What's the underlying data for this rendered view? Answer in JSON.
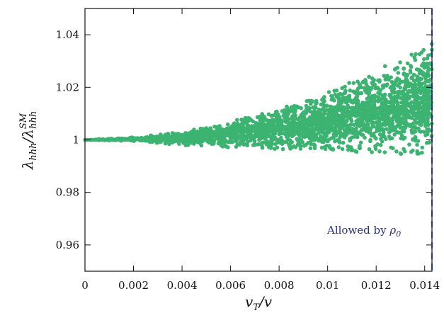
{
  "chart_data": {
    "type": "scatter",
    "xlabel": {
      "main": "v",
      "sub": "T",
      "tail": "/v"
    },
    "ylabel": {
      "main": "λ",
      "sub": "hhh",
      "mid": "/λ",
      "sub2": "hhh",
      "sup2": "SM"
    },
    "xlim": [
      0,
      0.0143
    ],
    "ylim": [
      0.95,
      1.05
    ],
    "xticks": [
      0,
      0.002,
      0.004,
      0.006,
      0.008,
      0.01,
      0.012,
      0.014
    ],
    "xtick_labels": [
      "0",
      "0.002",
      "0.004",
      "0.006",
      "0.008",
      "0.01",
      "0.012",
      "0.014"
    ],
    "yticks": [
      0.96,
      0.98,
      1.0,
      1.02,
      1.04
    ],
    "ytick_labels": [
      "0.96",
      "0.98",
      "1",
      "1.02",
      "1.04"
    ],
    "grid": false,
    "point_color": "#3cb371",
    "envelope": [
      {
        "x": 0.0,
        "ymin": 1.0,
        "ymax": 1.0
      },
      {
        "x": 0.002,
        "ymin": 0.9995,
        "ymax": 1.001
      },
      {
        "x": 0.004,
        "ymin": 0.998,
        "ymax": 1.003
      },
      {
        "x": 0.006,
        "ymin": 0.997,
        "ymax": 1.007
      },
      {
        "x": 0.008,
        "ymin": 0.9965,
        "ymax": 1.012
      },
      {
        "x": 0.01,
        "ymin": 0.996,
        "ymax": 1.018
      },
      {
        "x": 0.012,
        "ymin": 0.995,
        "ymax": 1.027
      },
      {
        "x": 0.0143,
        "ymin": 0.994,
        "ymax": 1.037
      }
    ],
    "vline": {
      "x": 0.0143,
      "color": "#2b2f8a",
      "style": "dashed"
    },
    "annotation": {
      "text": "Allowed by ",
      "symbol": "ρ",
      "sub": "0"
    }
  }
}
